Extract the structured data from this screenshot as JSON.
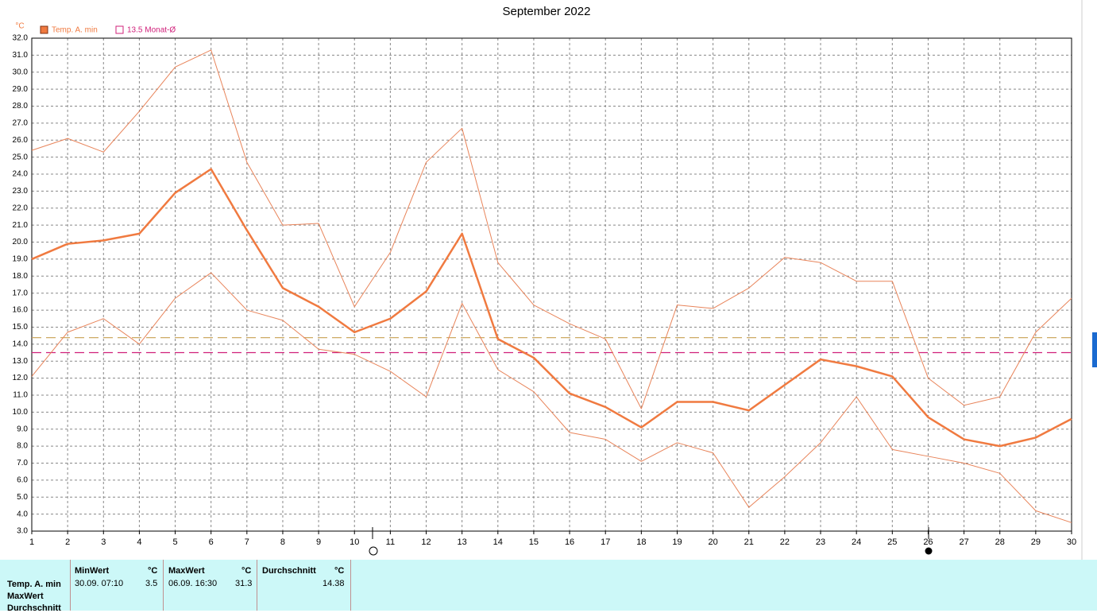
{
  "chart_data": {
    "type": "line",
    "title": "September 2022",
    "y_unit": "°C",
    "x": [
      1,
      2,
      3,
      4,
      5,
      6,
      7,
      8,
      9,
      10,
      11,
      12,
      13,
      14,
      15,
      16,
      17,
      18,
      19,
      20,
      21,
      22,
      23,
      24,
      25,
      26,
      27,
      28,
      29,
      30
    ],
    "xlim": [
      1,
      30
    ],
    "xticks": [
      1,
      2,
      3,
      4,
      5,
      6,
      7,
      8,
      9,
      10,
      11,
      12,
      13,
      14,
      15,
      16,
      17,
      18,
      19,
      20,
      21,
      22,
      23,
      24,
      25,
      26,
      27,
      28,
      29,
      30
    ],
    "ylim": [
      3,
      32
    ],
    "yticks": [
      {
        "value": 3,
        "label": "3.0"
      },
      {
        "value": 4,
        "label": "4.0"
      },
      {
        "value": 5,
        "label": "5.0"
      },
      {
        "value": 6,
        "label": "6.0"
      },
      {
        "value": 7,
        "label": "7.0"
      },
      {
        "value": 8,
        "label": "8.0"
      },
      {
        "value": 9,
        "label": "9.0"
      },
      {
        "value": 10,
        "label": "10.0"
      },
      {
        "value": 11,
        "label": "11.0"
      },
      {
        "value": 12,
        "label": "12.0"
      },
      {
        "value": 13,
        "label": "13.0"
      },
      {
        "value": 14,
        "label": "14.0"
      },
      {
        "value": 15,
        "label": "15.0"
      },
      {
        "value": 16,
        "label": "16.0"
      },
      {
        "value": 17,
        "label": "17.0"
      },
      {
        "value": 18,
        "label": "18.0"
      },
      {
        "value": 19,
        "label": "19.0"
      },
      {
        "value": 20,
        "label": "20.0"
      },
      {
        "value": 21,
        "label": "21.0"
      },
      {
        "value": 22,
        "label": "22.0"
      },
      {
        "value": 23,
        "label": "23.0"
      },
      {
        "value": 24,
        "label": "24.0"
      },
      {
        "value": 25,
        "label": "25.0"
      },
      {
        "value": 26,
        "label": "26.0"
      },
      {
        "value": 27,
        "label": "27.0"
      },
      {
        "value": 28,
        "label": "28.0"
      },
      {
        "value": 29,
        "label": "29.0"
      },
      {
        "value": 30,
        "label": "30.0"
      },
      {
        "value": 31,
        "label": "31.0"
      },
      {
        "value": 32,
        "label": "32.0"
      }
    ],
    "grid": true,
    "series": [
      {
        "name": "Temp. A. min",
        "color": "#f07a40",
        "width": 2.5,
        "values": [
          19.0,
          19.9,
          20.1,
          20.5,
          22.9,
          24.3,
          20.7,
          17.3,
          16.2,
          14.7,
          15.5,
          17.1,
          20.5,
          14.3,
          13.2,
          11.1,
          10.3,
          9.1,
          10.6,
          10.6,
          10.1,
          11.6,
          13.1,
          12.7,
          12.1,
          9.7,
          8.4,
          8.0,
          8.5,
          9.6
        ]
      },
      {
        "color": "#e8845a",
        "width": 1,
        "values": [
          25.4,
          26.1,
          25.3,
          27.7,
          30.3,
          31.3,
          24.7,
          21.0,
          21.1,
          16.2,
          19.4,
          24.7,
          26.7,
          18.8,
          16.3,
          15.2,
          14.3,
          10.2,
          16.3,
          16.1,
          17.3,
          19.1,
          18.8,
          17.7,
          17.7,
          12.0,
          10.4,
          10.9,
          14.7,
          16.7
        ]
      },
      {
        "color": "#e8845a",
        "width": 1,
        "values": [
          12.1,
          14.7,
          15.5,
          14.0,
          16.7,
          18.2,
          16.0,
          15.4,
          13.7,
          13.4,
          12.4,
          10.9,
          16.4,
          12.5,
          11.2,
          8.8,
          8.4,
          7.1,
          8.2,
          7.6,
          4.4,
          6.2,
          8.2,
          10.9,
          7.8,
          7.4,
          7.0,
          6.4,
          4.2,
          3.5
        ]
      }
    ],
    "hlines": [
      {
        "value": 14.38,
        "color": "#c8a050"
      },
      {
        "value": 13.5,
        "label": "13.5 Monat-Ø",
        "color": "#d0207a"
      }
    ]
  },
  "table": {
    "row_labels": [
      "Temp. A. min",
      "MaxWert",
      "Durchschnitt"
    ],
    "headers": [
      "MinWert",
      "°C",
      "MaxWert",
      "°C",
      "Durchschnitt",
      "°C"
    ],
    "cells": [
      "30.09.  07:10",
      "3.5",
      "06.09.  16:30",
      "31.3",
      "14.38"
    ]
  }
}
